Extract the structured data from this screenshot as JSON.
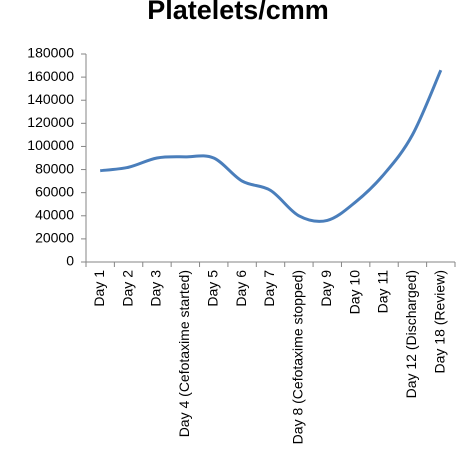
{
  "chart_data": {
    "type": "line",
    "title": "Platelets/cmm",
    "categories": [
      "Day 1",
      "Day 2",
      "Day 3",
      "Day 4 (Cefotaxime started)",
      "Day 5",
      "Day 6",
      "Day 7",
      "Day 8 (Cefotaxime stopped)",
      "Day 9",
      "Day 10",
      "Day 11",
      "Day 12 (Discharged)",
      "Day 18 (Review)"
    ],
    "values": [
      79000,
      82000,
      90000,
      91000,
      90000,
      70000,
      62000,
      40000,
      36000,
      52000,
      76000,
      110000,
      166000
    ],
    "color": "#4a7ebb",
    "ylim": [
      0,
      180000
    ],
    "yticks": [
      0,
      20000,
      40000,
      60000,
      80000,
      100000,
      120000,
      140000,
      160000,
      180000
    ],
    "grid": false
  }
}
